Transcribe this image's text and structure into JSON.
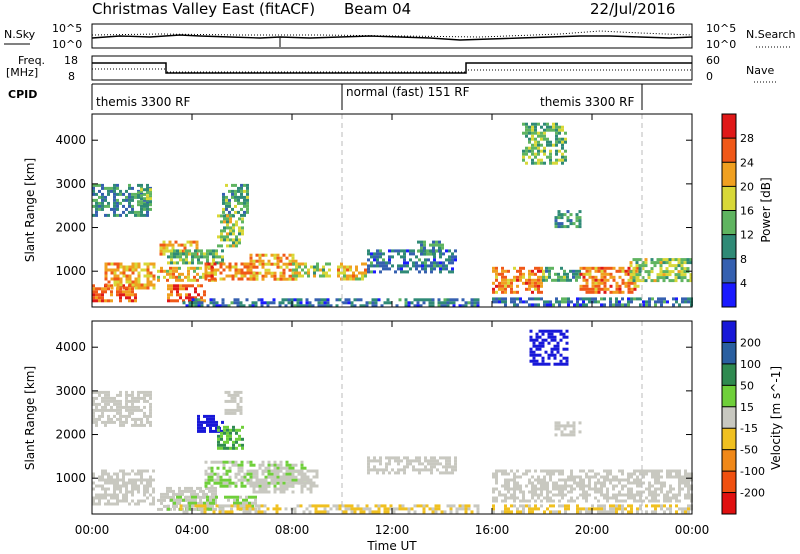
{
  "header": {
    "title": "Christmas Valley East (fitACF)",
    "beam": "Beam 04",
    "date": "22/Jul/2016"
  },
  "top_panels": {
    "nsky_label": "N.Sky",
    "nsky_ticks": [
      "10^5",
      "10^0"
    ],
    "nsearch_label": "N.Search",
    "freq_label": "Freq.",
    "freq_unit": "[MHz]",
    "freq_ticks": [
      "18",
      "8"
    ],
    "nave_ticks": [
      "60",
      "0"
    ],
    "nave_label": "Nave",
    "cpid_label": "CPID",
    "cpid_segments": [
      {
        "label": "themis 3300 RF",
        "start": 0,
        "end": 10
      },
      {
        "label": "normal (fast) 151 RF",
        "start": 10,
        "end": 22
      },
      {
        "label": "themis 3300 RF",
        "start": 22,
        "end": 24
      }
    ]
  },
  "chart_data": [
    {
      "type": "heatmap",
      "name": "power",
      "ylabel": "Slant Range [km]",
      "x_range": [
        0,
        24
      ],
      "ylim": [
        180,
        4600
      ],
      "yticks": [
        "1000",
        "2000",
        "3000",
        "4000"
      ],
      "colorbar_label": "Power [dB]",
      "colorbar_ticks": [
        "4",
        "8",
        "12",
        "16",
        "20",
        "24",
        "28"
      ],
      "colorbar_range": [
        0,
        32
      ],
      "colors": [
        "#1a1aff",
        "#3560b0",
        "#2f8a76",
        "#5fb460",
        "#d8d838",
        "#f0a020",
        "#f05818",
        "#e01818"
      ],
      "regions": [
        {
          "t0": 0.0,
          "t1": 1.8,
          "r0": 300,
          "r1": 700,
          "v": 26
        },
        {
          "t0": 0.5,
          "t1": 2.5,
          "r0": 600,
          "r1": 1200,
          "v": 22
        },
        {
          "t0": 0.0,
          "t1": 2.3,
          "r0": 2300,
          "r1": 3000,
          "v": 10
        },
        {
          "t0": 1.8,
          "t1": 2.4,
          "r0": 2500,
          "r1": 2900,
          "v": 14
        },
        {
          "t0": 2.6,
          "t1": 5.0,
          "r0": 800,
          "r1": 1100,
          "v": 20
        },
        {
          "t0": 3.0,
          "t1": 4.5,
          "r0": 300,
          "r1": 700,
          "v": 26
        },
        {
          "t0": 2.7,
          "t1": 4.2,
          "r0": 1400,
          "r1": 1700,
          "v": 22
        },
        {
          "t0": 3.0,
          "t1": 5.2,
          "r0": 1200,
          "r1": 1500,
          "v": 14
        },
        {
          "t0": 4.5,
          "t1": 6.5,
          "r0": 800,
          "r1": 1200,
          "v": 24
        },
        {
          "t0": 5.2,
          "t1": 6.2,
          "r0": 2300,
          "r1": 3000,
          "v": 12
        },
        {
          "t0": 5.0,
          "t1": 6.0,
          "r0": 1600,
          "r1": 2300,
          "v": 16
        },
        {
          "t0": 6.3,
          "t1": 8.2,
          "r0": 800,
          "r1": 1400,
          "v": 22
        },
        {
          "t0": 8.0,
          "t1": 9.5,
          "r0": 900,
          "r1": 1200,
          "v": 16
        },
        {
          "t0": 9.8,
          "t1": 11.0,
          "r0": 800,
          "r1": 1200,
          "v": 20
        },
        {
          "t0": 3.5,
          "t1": 15.5,
          "r0": 200,
          "r1": 380,
          "v": 8
        },
        {
          "t0": 11.0,
          "t1": 14.5,
          "r0": 1000,
          "r1": 1500,
          "v": 8
        },
        {
          "t0": 13.0,
          "t1": 14.0,
          "r0": 1400,
          "r1": 1700,
          "v": 10
        },
        {
          "t0": 16.0,
          "t1": 18.0,
          "r0": 500,
          "r1": 1100,
          "v": 24
        },
        {
          "t0": 18.0,
          "t1": 19.5,
          "r0": 800,
          "r1": 1100,
          "v": 12
        },
        {
          "t0": 19.5,
          "t1": 21.8,
          "r0": 500,
          "r1": 1100,
          "v": 24
        },
        {
          "t0": 21.5,
          "t1": 24.0,
          "r0": 800,
          "r1": 1300,
          "v": 16
        },
        {
          "t0": 17.2,
          "t1": 19.0,
          "r0": 3500,
          "r1": 4400,
          "v": 14
        },
        {
          "t0": 18.5,
          "t1": 19.5,
          "r0": 2000,
          "r1": 2400,
          "v": 10
        },
        {
          "t0": 16.0,
          "t1": 24.0,
          "r0": 200,
          "r1": 400,
          "v": 8
        }
      ]
    },
    {
      "type": "heatmap",
      "name": "velocity",
      "ylabel": "Slant Range [km]",
      "xlabel": "Time UT",
      "x_range": [
        0,
        24
      ],
      "ylim": [
        180,
        4600
      ],
      "xticks": [
        "00:00",
        "04:00",
        "08:00",
        "12:00",
        "16:00",
        "20:00",
        "00:00"
      ],
      "yticks": [
        "1000",
        "2000",
        "3000",
        "4000"
      ],
      "colorbar_label": "Velocity [m s^-1]",
      "colorbar_ticks": [
        "200",
        "100",
        "50",
        "15",
        "-15",
        "-50",
        "-100",
        "-200"
      ],
      "colorbar_range": [
        250,
        -250
      ],
      "colors": [
        "#1818d8",
        "#2a5fa0",
        "#2f8a50",
        "#6fcf3a",
        "#c8c8c0",
        "#f0c020",
        "#f08818",
        "#f05010",
        "#e01010"
      ],
      "regions": [
        {
          "t0": 0.0,
          "t1": 2.5,
          "r0": 400,
          "r1": 1200,
          "v": 0
        },
        {
          "t0": 0.0,
          "t1": 2.3,
          "r0": 2200,
          "r1": 3000,
          "v": 0
        },
        {
          "t0": 2.6,
          "t1": 5.0,
          "r0": 300,
          "r1": 800,
          "v": 0
        },
        {
          "t0": 3.0,
          "t1": 6.5,
          "r0": 300,
          "r1": 600,
          "v": 30
        },
        {
          "t0": 4.5,
          "t1": 8.5,
          "r0": 800,
          "r1": 1400,
          "v": 30
        },
        {
          "t0": 4.2,
          "t1": 5.2,
          "r0": 2050,
          "r1": 2450,
          "v": 220
        },
        {
          "t0": 5.0,
          "t1": 6.0,
          "r0": 1700,
          "r1": 2200,
          "v": 80
        },
        {
          "t0": 5.3,
          "t1": 6.0,
          "r0": 2500,
          "r1": 3000,
          "v": 0
        },
        {
          "t0": 6.3,
          "t1": 9.0,
          "r0": 700,
          "r1": 1200,
          "v": 0
        },
        {
          "t0": 3.5,
          "t1": 15.5,
          "r0": 200,
          "r1": 400,
          "v": -30
        },
        {
          "t0": 11.0,
          "t1": 14.5,
          "r0": 1100,
          "r1": 1500,
          "v": 0
        },
        {
          "t0": 16.0,
          "t1": 24.0,
          "r0": 500,
          "r1": 1200,
          "v": 0
        },
        {
          "t0": 16.0,
          "t1": 24.0,
          "r0": 200,
          "r1": 400,
          "v": -30
        },
        {
          "t0": 17.5,
          "t1": 19.0,
          "r0": 3600,
          "r1": 4400,
          "v": 220
        },
        {
          "t0": 18.5,
          "t1": 19.5,
          "r0": 2000,
          "r1": 2300,
          "v": 0
        }
      ]
    }
  ]
}
